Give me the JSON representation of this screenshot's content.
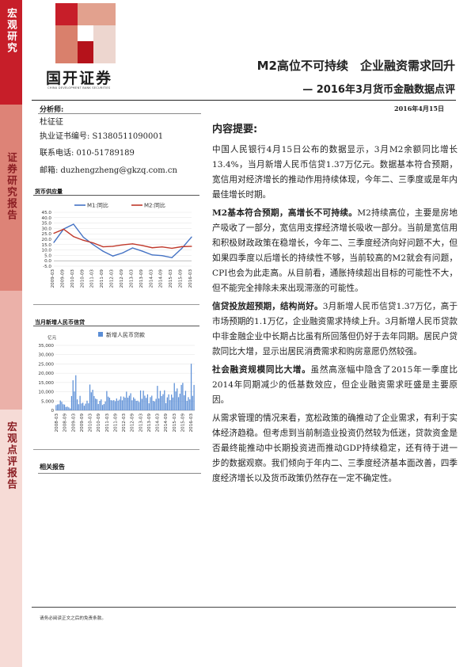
{
  "sidebar": {
    "top_label": "宏观研究",
    "middle_label": "证券研究报告",
    "bottom_label": "宏观点评报告"
  },
  "logo": {
    "name": "国开证券",
    "english": "CHINA DEVELOPMENT BANK SECURITIES"
  },
  "header": {
    "title": "M2高位不可持续　企业融资需求回升",
    "subtitle": "— 2016年3月货币金融数据点评",
    "date": "2016年4月15日"
  },
  "analyst": {
    "label": "分析师:",
    "name": "杜征征",
    "cert": "执业证书编号: S1380511090001",
    "phone": "联系电话: 010-51789189",
    "email": "邮箱: duzhengzheng@gkzq.com.cn"
  },
  "chart1_title": "货币供应量",
  "chart2_title": "当月新增人民币信贷",
  "related_reports": "相关报告",
  "summary_heading": "内容提要:",
  "paragraphs": [
    {
      "lead": "",
      "text": "中国人民银行4月15日公布的数据显示，3月M2余额同比增长13.4%，当月新增人民币信贷1.37万亿元。数据基本符合预期，宽信用对经济增长的推动作用持续体现，今年二、三季度或是年内最佳增长时期。"
    },
    {
      "lead": "M2基本符合预期，高增长不可持续。",
      "text": "M2持续高位，主要是房地产吸收了一部分，宽信用支撑经济增长吸收一部分。当前是宽信用和积极财政政策在稳增长，今年二、三季度经济向好问题不大，但如果四季度以后增长的持续性不够，当前较高的M2就会有问题，CPI也会为此走高。从目前看，通胀持续超出目标的可能性不大，但不能完全排除未来出现滞涨的可能性。"
    },
    {
      "lead": "信贷投放超预期，结构尚好。",
      "text": "3月新增人民币信贷1.37万亿，高于市场预期的1.1万亿，企业融资需求持续上升。3月新增人民币贷款中非金融企业中长期占比虽有所回落但仍好于去年同期。居民户贷款同比大增，显示出居民消费需求和购房意愿仍然较强。"
    },
    {
      "lead": "社会融资规模同比大增。",
      "text": "虽然高涨幅中隐含了2015年一季度比2014年同期减少的低基数效应，但企业融资需求旺盛是主要原因。"
    },
    {
      "lead": "",
      "text": "从需求管理的情况来看，宽松政策的确推动了企业需求，有利于实体经济趋稳。但考虑到当前制造业投资仍然较为低迷，贷款资金是否最终能推动中长期投资进而推动GDP持续稳定，还有待于进一步的数据观察。我们倾向于年内二、三季度经济基本面改善，四季度经济增长以及货币政策仍然存在一定不确定性。"
    }
  ],
  "footer": "请务必阅读正文之后的免责条款。",
  "colors": {
    "brand_red": "#c71e29",
    "m1": "#4472c4",
    "m2": "#c0392b",
    "bar": "#5b8ed6"
  },
  "chart_data": [
    {
      "type": "line",
      "title": "",
      "legend_position": "top",
      "x": [
        "2009-03",
        "2009-09",
        "2010-03",
        "2010-09",
        "2011-03",
        "2011-09",
        "2012-03",
        "2012-09",
        "2013-03",
        "2013-09",
        "2014-03",
        "2014-09",
        "2015-03",
        "2015-09",
        "2016-03"
      ],
      "series": [
        {
          "name": "M1:同比",
          "values": [
            17.0,
            29.5,
            34.0,
            21.9,
            15.0,
            8.9,
            4.4,
            7.3,
            11.9,
            8.9,
            5.4,
            4.8,
            2.9,
            11.4,
            22.1
          ]
        },
        {
          "name": "M2:同比",
          "values": [
            25.5,
            29.3,
            22.5,
            19.0,
            16.6,
            13.0,
            13.4,
            14.8,
            15.7,
            14.2,
            12.1,
            12.9,
            11.6,
            13.1,
            13.4
          ]
        }
      ],
      "y_ticks": [
        45.0,
        40.0,
        35.0,
        30.0,
        25.0,
        20.0,
        15.0,
        10.0,
        5.0,
        0.0,
        -5.0
      ],
      "ylim": [
        -5,
        45
      ]
    },
    {
      "type": "bar",
      "title": "",
      "ylabel": "亿元",
      "legend_position": "top",
      "series": [
        {
          "name": "新增人民币贷款"
        }
      ],
      "x_ticks": [
        "2008-03",
        "2008-09",
        "2009-03",
        "2009-09",
        "2010-03",
        "2010-09",
        "2011-03",
        "2011-09",
        "2012-03",
        "2012-09",
        "2013-03",
        "2013-09",
        "2014-03",
        "2014-09",
        "2015-03",
        "2015-09",
        "2016-03"
      ],
      "values": [
        2800,
        3200,
        3300,
        5300,
        4600,
        3300,
        3100,
        1800,
        2000,
        1600,
        1000,
        7700,
        16200,
        10200,
        18900,
        5900,
        3300,
        7800,
        3700,
        4100,
        2500,
        3600,
        5200,
        3800,
        13900,
        9700,
        11100,
        7700,
        6300,
        6000,
        3400,
        5100,
        5900,
        2900,
        3400,
        4800,
        10400,
        7400,
        6800,
        5500,
        5300,
        5500,
        4900,
        6400,
        5200,
        5800,
        7500,
        5400,
        7400,
        6800,
        10100,
        6800,
        7900,
        9200,
        5400,
        7000,
        6200,
        5100,
        5200,
        4500,
        10700,
        6200,
        10600,
        7900,
        6700,
        8600,
        3800,
        7100,
        7900,
        5100,
        4800,
        6200,
        13200,
        6400,
        10500,
        7700,
        8700,
        10800,
        3900,
        7000,
        8600,
        5500,
        8500,
        6900,
        14700,
        10200,
        11800,
        7100,
        9000,
        13700,
        14800,
        8100,
        10500,
        5100,
        7100,
        5900,
        25100,
        7800,
        13700
      ],
      "y_ticks": [
        35000,
        30000,
        25000,
        20000,
        15000,
        10000,
        5000,
        0
      ],
      "ylim": [
        0,
        35000
      ]
    }
  ]
}
